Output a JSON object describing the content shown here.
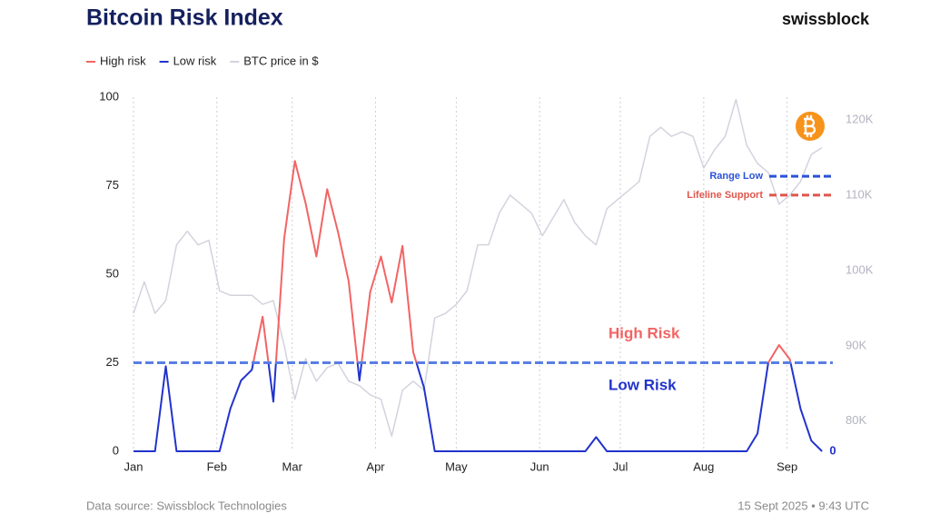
{
  "chart_data": {
    "type": "line",
    "title": "Bitcoin Risk Index",
    "brand": "swissblock",
    "source": "Data source: Swissblock Technologies",
    "timestamp": "15 Sept 2025 • 9:43 UTC",
    "x": [
      0,
      4,
      8,
      12,
      16,
      20,
      24,
      28,
      32,
      36,
      40,
      44,
      48,
      52,
      56,
      60,
      64,
      68,
      72,
      76,
      80,
      84,
      88,
      92,
      96,
      100,
      104,
      108,
      112,
      116,
      120,
      124,
      128,
      132,
      136,
      140,
      144,
      148,
      152,
      156,
      160,
      164,
      168,
      172,
      176,
      180,
      184,
      188,
      192,
      196,
      200,
      204,
      208,
      212,
      216,
      220,
      224,
      228,
      232,
      236,
      240,
      244,
      248,
      252,
      256
    ],
    "xlim": [
      0,
      260
    ],
    "xticks": [
      {
        "value": 0,
        "label": "Jan"
      },
      {
        "value": 31,
        "label": "Feb"
      },
      {
        "value": 59,
        "label": "Mar"
      },
      {
        "value": 90,
        "label": "Apr"
      },
      {
        "value": 120,
        "label": "May"
      },
      {
        "value": 151,
        "label": "Jun"
      },
      {
        "value": 181,
        "label": "Jul"
      },
      {
        "value": 212,
        "label": "Aug"
      },
      {
        "value": 243,
        "label": "Sep"
      }
    ],
    "ylim": [
      0,
      100
    ],
    "yticks": [
      0,
      25,
      50,
      75,
      100
    ],
    "y2lim": [
      76000,
      123000
    ],
    "y2ticks": [
      {
        "value": 80000,
        "label": "80K"
      },
      {
        "value": 90000,
        "label": "90K"
      },
      {
        "value": 100000,
        "label": "100K"
      },
      {
        "value": 110000,
        "label": "110K"
      },
      {
        "value": 120000,
        "label": "120K"
      }
    ],
    "grid": "x",
    "threshold": 25,
    "threshold_color": "#5a7fe4",
    "series": [
      {
        "name": "High risk",
        "color": "#f26464",
        "values": [
          null,
          null,
          null,
          null,
          null,
          null,
          null,
          null,
          null,
          null,
          null,
          23,
          38,
          14,
          60,
          82,
          70,
          55,
          74,
          62,
          48,
          20,
          45,
          55,
          42,
          58,
          28,
          18,
          null,
          null,
          null,
          null,
          null,
          null,
          null,
          null,
          null,
          null,
          null,
          null,
          null,
          null,
          null,
          null,
          null,
          null,
          null,
          null,
          null,
          null,
          null,
          null,
          null,
          null,
          null,
          null,
          null,
          null,
          5,
          25,
          30,
          26,
          12,
          null,
          null
        ]
      },
      {
        "name": "Low risk",
        "color": "#2233cc",
        "values": [
          0,
          0,
          0,
          24,
          0,
          0,
          0,
          0,
          0,
          12,
          20,
          23,
          38,
          14,
          60,
          null,
          null,
          null,
          null,
          null,
          48,
          20,
          45,
          null,
          null,
          null,
          28,
          18,
          0,
          0,
          0,
          0,
          0,
          0,
          0,
          0,
          0,
          0,
          0,
          0,
          0,
          0,
          0,
          4,
          0,
          0,
          0,
          0,
          0,
          0,
          0,
          0,
          0,
          0,
          0,
          0,
          0,
          0,
          5,
          25,
          null,
          26,
          12,
          3,
          0
        ]
      },
      {
        "name": "BTC price in $",
        "color": "#d3d3de",
        "axis": "y2",
        "values": [
          94300,
          98500,
          94300,
          96000,
          103400,
          105200,
          103400,
          104000,
          97300,
          96700,
          96700,
          96700,
          95500,
          96000,
          90100,
          82900,
          88300,
          85300,
          87100,
          87700,
          85300,
          84700,
          83500,
          82900,
          78000,
          84100,
          85300,
          84100,
          93700,
          94300,
          95500,
          97300,
          103400,
          103400,
          107600,
          110000,
          108800,
          107600,
          104600,
          107000,
          109400,
          106400,
          104600,
          103400,
          108200,
          109400,
          110600,
          111800,
          117800,
          119000,
          117800,
          118400,
          117800,
          113600,
          116000,
          117800,
          122700,
          116600,
          114200,
          113000,
          108800,
          110000,
          111800,
          115400,
          116300
        ]
      }
    ],
    "annotations": [
      {
        "text": "High Risk",
        "color": "#f26464"
      },
      {
        "text": "Low Risk",
        "color": "#2233cc"
      }
    ],
    "levels": [
      {
        "label": "Range Low",
        "value": 112500,
        "color": "#2a52d6"
      },
      {
        "label": "Lifeline Support",
        "value": 110000,
        "color": "#e0564c"
      }
    ]
  }
}
